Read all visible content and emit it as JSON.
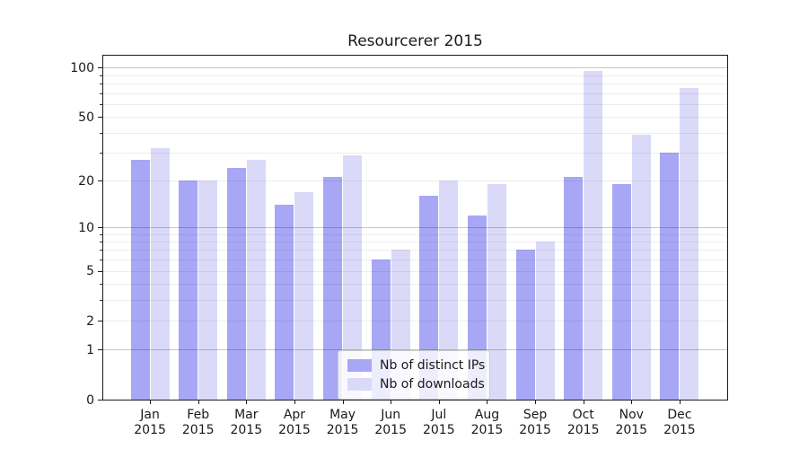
{
  "chart_data": {
    "type": "bar",
    "title": "Resourcerer 2015",
    "categories": [
      "Jan 2015",
      "Feb 2015",
      "Mar 2015",
      "Apr 2015",
      "May 2015",
      "Jun 2015",
      "Jul 2015",
      "Aug 2015",
      "Sep 2015",
      "Oct 2015",
      "Nov 2015",
      "Dec 2015"
    ],
    "month_labels": [
      "Jan",
      "Feb",
      "Mar",
      "Apr",
      "May",
      "Jun",
      "Jul",
      "Aug",
      "Sep",
      "Oct",
      "Nov",
      "Dec"
    ],
    "year_label": "2015",
    "series": [
      {
        "name": "Nb of distinct IPs",
        "color": "#a7a7f5",
        "values": [
          27,
          20,
          24,
          14,
          21,
          6,
          16,
          12,
          7,
          21,
          19,
          30
        ]
      },
      {
        "name": "Nb of downloads",
        "color": "#dadaf8",
        "values": [
          32,
          20,
          27,
          17,
          29,
          7,
          20,
          19,
          8,
          96,
          39,
          75
        ]
      }
    ],
    "xlabel": "",
    "ylabel": "",
    "yscale": "log1p",
    "ylim": [
      0,
      120
    ],
    "yticks": [
      0,
      1,
      2,
      5,
      10,
      20,
      50,
      100
    ],
    "ygrid_major": [
      1,
      10,
      100
    ],
    "ygrid_minor": [
      2,
      3,
      4,
      5,
      6,
      7,
      8,
      9,
      20,
      30,
      40,
      50,
      60,
      70,
      80,
      90
    ],
    "grid": "horizontal",
    "legend_position": "lower center",
    "frame_color": "#1a1a1a"
  }
}
